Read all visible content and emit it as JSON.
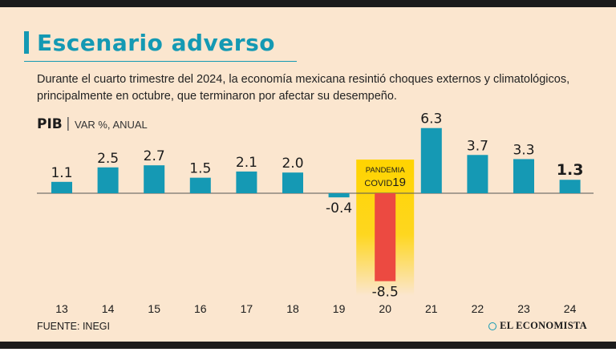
{
  "header": {
    "title": "Escenario adverso",
    "subtitle": "Durante el cuarto trimestre del 2024, la economía mexicana resintió choques externos y climatológicos, principalmente en octubre, que terminaron por afectar su desempeño."
  },
  "chart_label": {
    "main": "PIB",
    "separator": "|",
    "unit": "VAR %, ANUAL"
  },
  "chart_data": {
    "type": "bar",
    "categories": [
      "13",
      "14",
      "15",
      "16",
      "17",
      "18",
      "19",
      "20",
      "21",
      "22",
      "23",
      "24"
    ],
    "values": [
      1.1,
      2.5,
      2.7,
      1.5,
      2.1,
      2.0,
      -0.4,
      -8.5,
      6.3,
      3.7,
      3.3,
      1.3
    ],
    "value_labels": [
      "1.1",
      "2.5",
      "2.7",
      "1.5",
      "2.1",
      "2.0",
      "-0.4",
      "-8.5",
      "6.3",
      "3.7",
      "3.3",
      "1.3"
    ],
    "highlighted_last": true,
    "annotation": {
      "category": "20",
      "line1": "PANDEMIA",
      "line2_prefix": "COVID",
      "line2_suffix": "19"
    },
    "colors": {
      "bar": "#1599b4",
      "negative_highlight_bar": "#ec4a41",
      "highlight_band": "#ffd400",
      "background": "#fbe6cf",
      "baseline": "#555555"
    },
    "ylim": [
      -9,
      7
    ]
  },
  "footer": {
    "source": "FUENTE: INEGI",
    "brand": "EL ECONOMISTA"
  }
}
